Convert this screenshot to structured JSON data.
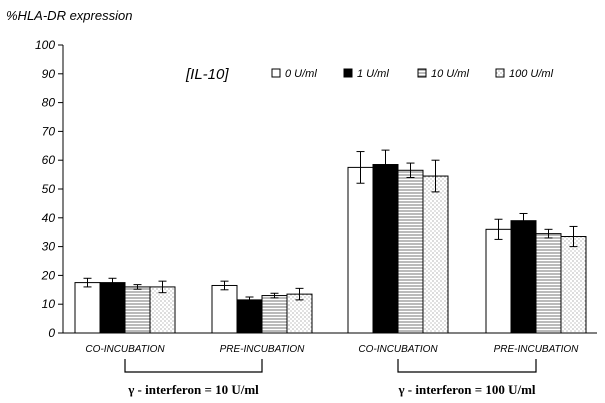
{
  "chart_data": {
    "type": "bar",
    "ylabel": "%HLA-DR expression",
    "annotation": "[IL-10]",
    "ylim": [
      0,
      100
    ],
    "yticks": [
      0,
      10,
      20,
      30,
      40,
      50,
      60,
      70,
      80,
      90,
      100
    ],
    "grid": false,
    "legend_position": "top-right",
    "categories": [
      "CO-INCUBATION",
      "PRE-INCUBATION",
      "CO-INCUBATION",
      "PRE-INCUBATION"
    ],
    "groups": [
      {
        "label": "γ - interferon = 10 U/ml",
        "categories": [
          0,
          1
        ]
      },
      {
        "label": "γ - interferon = 100 U/ml",
        "categories": [
          2,
          3
        ]
      }
    ],
    "series": [
      {
        "name": "0 U/ml",
        "pattern": "white",
        "values": [
          17.5,
          16.5,
          57.5,
          36
        ],
        "errors": [
          1.5,
          1.5,
          5.5,
          3.5
        ]
      },
      {
        "name": "1 U/ml",
        "pattern": "black",
        "values": [
          17.5,
          11.5,
          58.5,
          39
        ],
        "errors": [
          1.5,
          1,
          5,
          2.5
        ]
      },
      {
        "name": "10 U/ml",
        "pattern": "hatch",
        "values": [
          16,
          13,
          56.5,
          34.5
        ],
        "errors": [
          0.8,
          0.8,
          2.5,
          1.5
        ]
      },
      {
        "name": "100 U/ml",
        "pattern": "dots",
        "values": [
          16,
          13.5,
          54.5,
          33.5
        ],
        "errors": [
          2,
          2,
          5.5,
          3.5
        ]
      }
    ]
  }
}
